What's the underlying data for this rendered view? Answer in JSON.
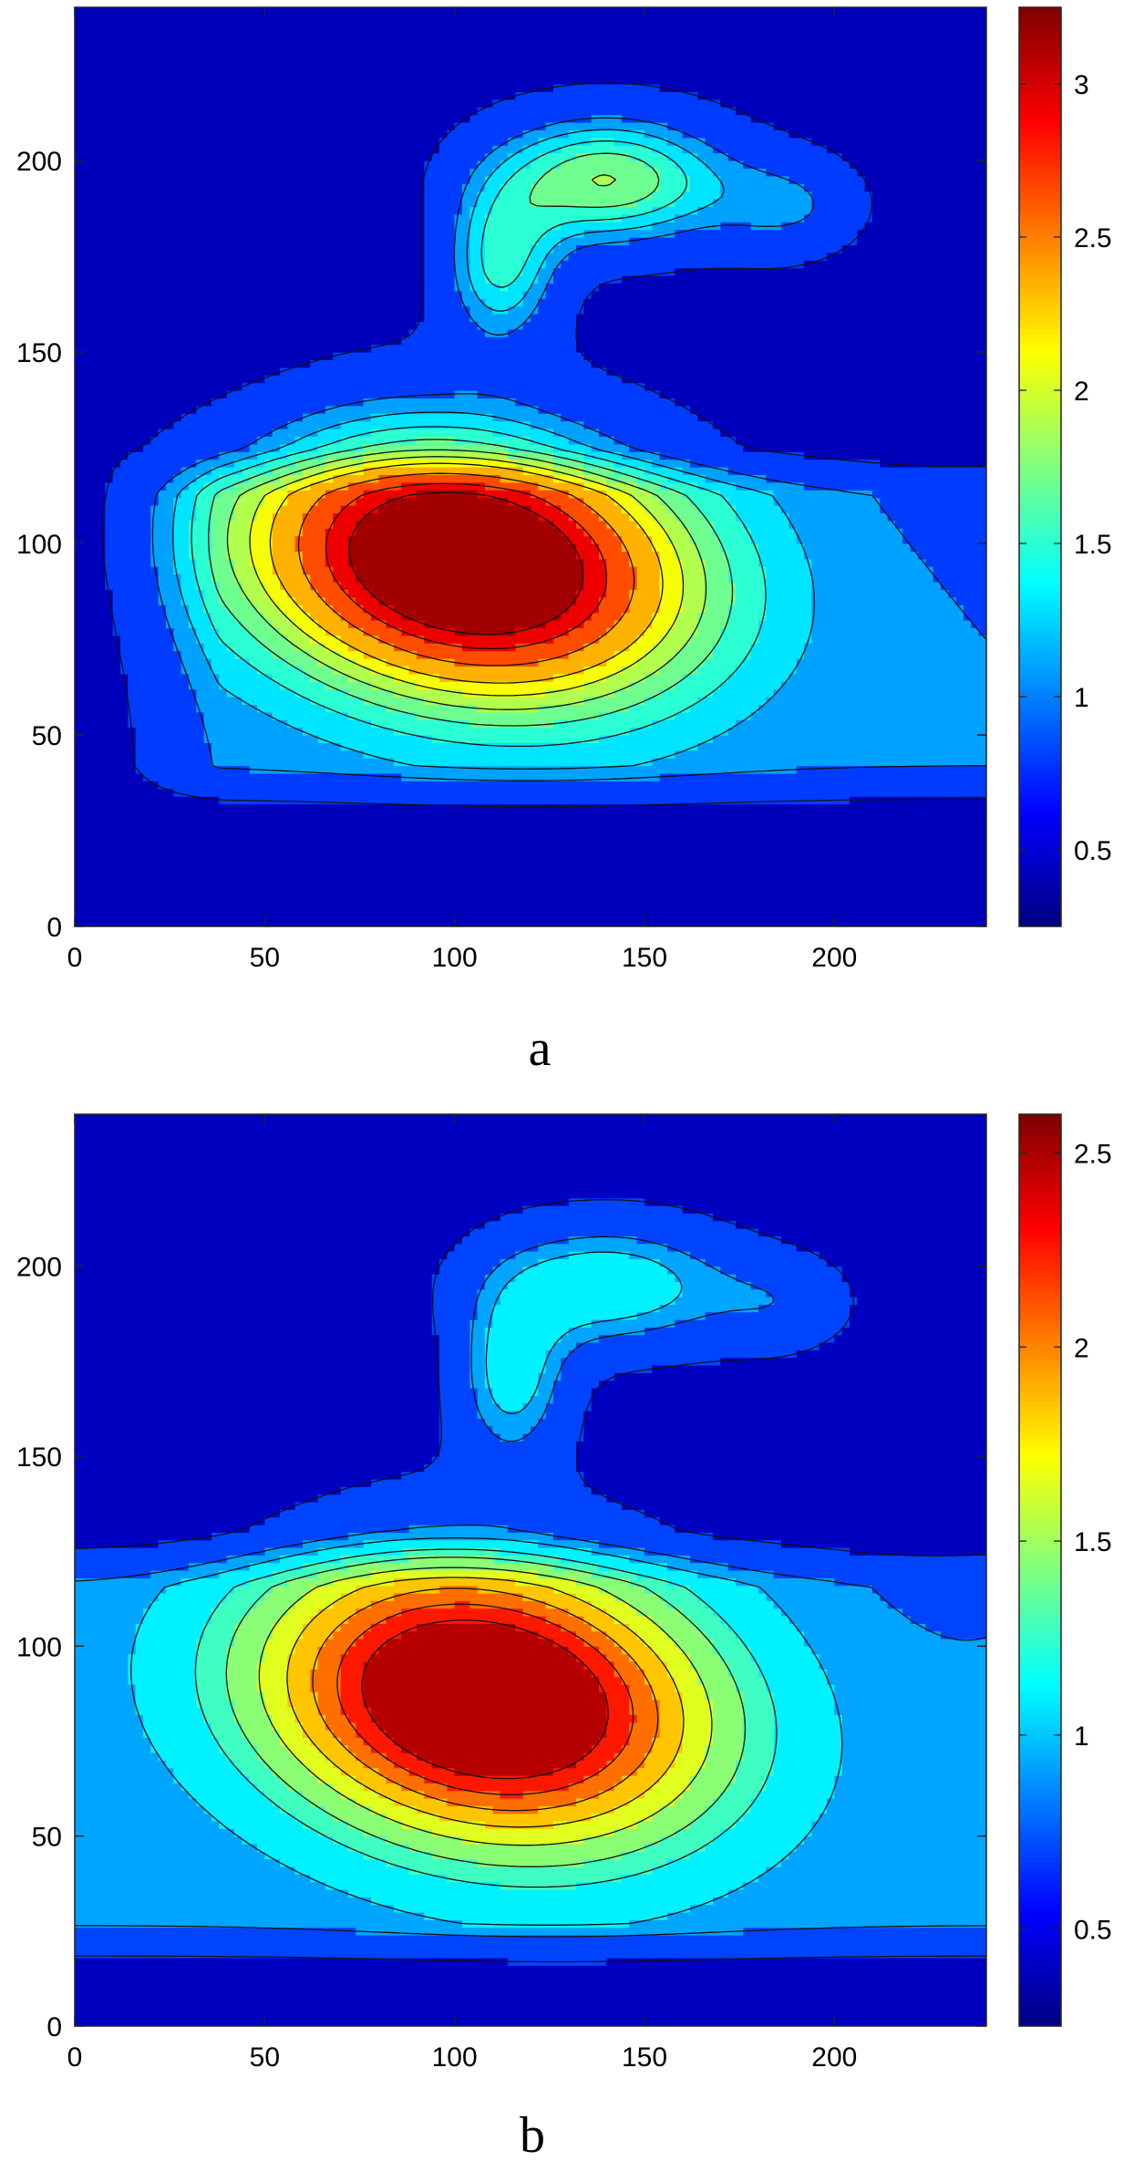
{
  "chart_data": [
    {
      "type": "contour",
      "panel_label": "a",
      "xlim": [
        0,
        240
      ],
      "ylim": [
        0,
        240
      ],
      "x_ticks": [
        0,
        50,
        100,
        150,
        200
      ],
      "y_ticks": [
        0,
        50,
        100,
        150,
        200
      ],
      "colorbar": {
        "min": 0.25,
        "max": 3.25,
        "ticks": [
          0.5,
          1,
          1.5,
          2,
          2.5,
          3
        ]
      },
      "contour_levels": [
        0.6,
        1.0,
        1.2,
        1.4,
        1.6,
        1.8,
        2.0,
        2.2,
        2.5,
        2.8,
        3.05
      ],
      "colormap": "jet",
      "features": [
        {
          "type": "peak",
          "x": 105,
          "y": 95,
          "value": 3.2
        },
        {
          "type": "tongue",
          "x": 140,
          "y": 195,
          "value": 1.85
        }
      ]
    },
    {
      "type": "contour",
      "panel_label": "b",
      "xlim": [
        0,
        240
      ],
      "ylim": [
        0,
        240
      ],
      "x_ticks": [
        0,
        50,
        100,
        150,
        200
      ],
      "y_ticks": [
        0,
        50,
        100,
        150,
        200
      ],
      "colorbar": {
        "min": 0.25,
        "max": 2.6,
        "ticks": [
          0.5,
          1,
          1.5,
          2,
          2.5
        ]
      },
      "contour_levels": [
        0.55,
        0.85,
        1.0,
        1.2,
        1.35,
        1.55,
        1.75,
        1.95,
        2.15,
        2.35
      ],
      "colormap": "jet",
      "features": [
        {
          "type": "peak",
          "x": 110,
          "y": 85,
          "value": 2.58
        },
        {
          "type": "tongue",
          "x": 140,
          "y": 195,
          "value": 1.25
        }
      ]
    }
  ]
}
